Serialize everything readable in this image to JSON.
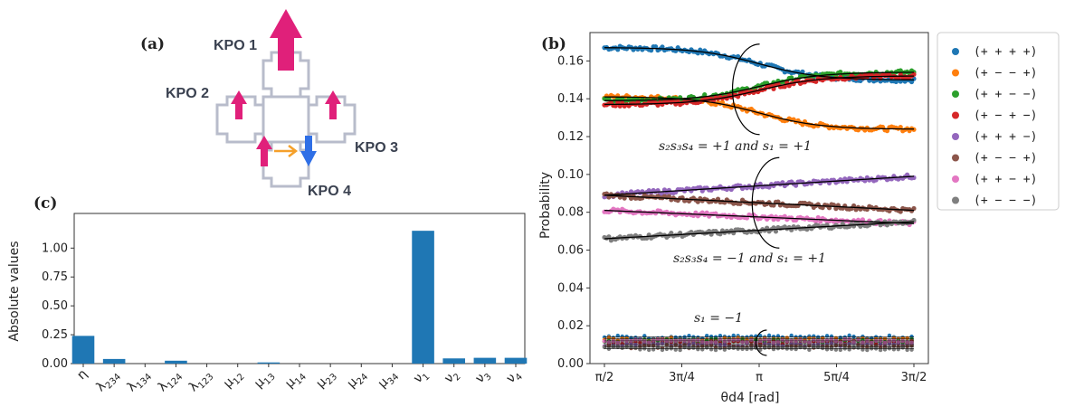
{
  "panels": {
    "a": "(a)",
    "b": "(b)",
    "c": "(c)"
  },
  "kpo_labels": [
    "KPO 1",
    "KPO 2",
    "KPO 3",
    "KPO 4"
  ],
  "colors": {
    "pink": "#e0207a",
    "blue": "#2f6fe6",
    "orange": "#f5a02a",
    "gray": "#b8bccb",
    "bar": "#1f77b4"
  },
  "chart_data": [
    {
      "type": "bar",
      "panel": "(c)",
      "categories": [
        "η",
        "λ234",
        "λ134",
        "λ124",
        "λ123",
        "μ12",
        "μ13",
        "μ14",
        "μ23",
        "μ24",
        "μ34",
        "ν1",
        "ν2",
        "ν3",
        "ν4"
      ],
      "values": [
        0.24,
        0.04,
        0.0,
        0.025,
        0.0,
        0.0,
        0.01,
        0.0,
        0.0,
        0.0,
        0.0,
        1.15,
        0.045,
        0.05,
        0.05
      ],
      "ylabel": "Absolute values",
      "ylim": [
        0,
        1.3
      ],
      "yticks": [
        0.0,
        0.25,
        0.5,
        0.75,
        1.0
      ],
      "ytick_labels": [
        "0.00",
        "0.25",
        "0.50",
        "0.75",
        "1.00"
      ],
      "grid": false
    },
    {
      "type": "line",
      "panel": "(b)",
      "xlabel": "θd4 [rad]",
      "ylabel": "Probability",
      "xlim": [
        1.5708,
        4.7124
      ],
      "ylim": [
        0,
        0.175
      ],
      "xticks": [
        1.5708,
        2.3562,
        3.1416,
        3.927,
        4.7124
      ],
      "xtick_labels": [
        "π/2",
        "3π/4",
        "π",
        "5π/4",
        "3π/2"
      ],
      "yticks": [
        0.0,
        0.02,
        0.04,
        0.06,
        0.08,
        0.1,
        0.12,
        0.14,
        0.16
      ],
      "ytick_labels": [
        "0.00",
        "0.02",
        "0.04",
        "0.06",
        "0.08",
        "0.10",
        "0.12",
        "0.14",
        "0.16"
      ],
      "legend_position": "outside right",
      "series": [
        {
          "name": "(+ + + +)",
          "color": "#1f77b4",
          "start": 0.167,
          "end": 0.15,
          "shape": "tanh"
        },
        {
          "name": "(+ − − +)",
          "color": "#ff7f0e",
          "start": 0.141,
          "end": 0.124,
          "shape": "tanh"
        },
        {
          "name": "(+ + − −)",
          "color": "#2ca02c",
          "start": 0.139,
          "end": 0.154,
          "shape": "tanh"
        },
        {
          "name": "(+ − + −)",
          "color": "#d62728",
          "start": 0.137,
          "end": 0.152,
          "shape": "tanh"
        },
        {
          "name": "(+ + + −)",
          "color": "#9467bd",
          "start": 0.089,
          "end": 0.099,
          "shape": "linear"
        },
        {
          "name": "(+ − − +)",
          "color": "#8c564b",
          "start": 0.089,
          "end": 0.081,
          "shape": "linear"
        },
        {
          "name": "(+ + − +)",
          "color": "#e377c2",
          "start": 0.081,
          "end": 0.074,
          "shape": "linear"
        },
        {
          "name": "(+ − − −)",
          "color": "#7f7f7f",
          "start": 0.066,
          "end": 0.075,
          "shape": "linear"
        }
      ],
      "low_series_values": [
        0.014,
        0.013,
        0.012,
        0.011,
        0.01,
        0.009,
        0.012,
        0.008
      ],
      "annotations": [
        "s₂s₃s₄ = +1 and s₁ = +1",
        "s₂s₃s₄ = −1 and s₁ = +1",
        "s₁ = −1"
      ]
    }
  ]
}
